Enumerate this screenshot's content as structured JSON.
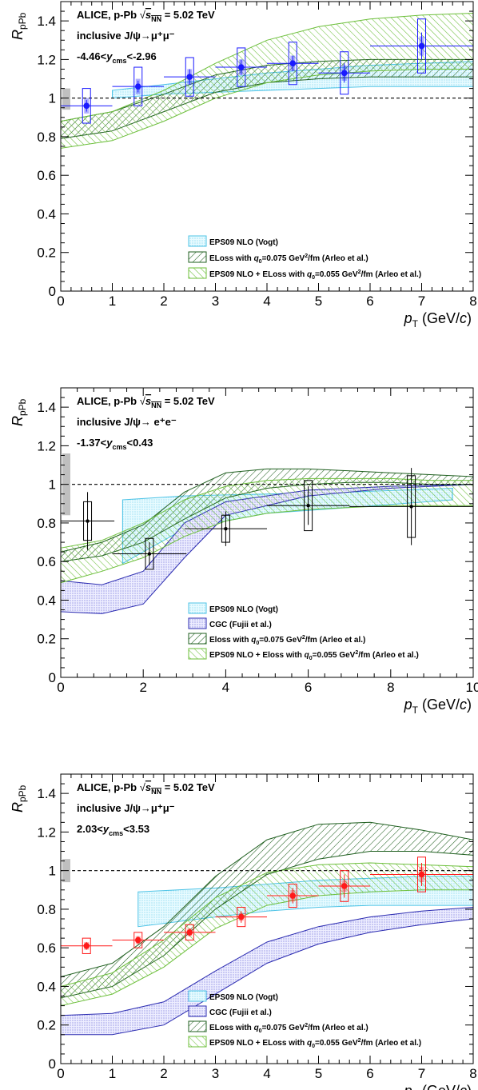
{
  "figure": {
    "common": {
      "ylabel_main": "R",
      "ylabel_sub": "pPb",
      "xlabel_main": "p",
      "xlabel_sub": "T",
      "xlabel_unit": "(GeV/",
      "xlabel_unit_italic": "c",
      "xlabel_unit_end": ")",
      "header": "ALICE, p-Pb",
      "sqrt_label": "s",
      "sqrt_sub": "NN",
      "energy": "= 5.02 TeV",
      "q_label": "q",
      "q_sub": "0"
    }
  },
  "chart_data": [
    {
      "type": "scatter",
      "header": "ALICE, p-Pb √sNN = 5.02 TeV",
      "process": "inclusive J/ψ→μ⁺μ⁻",
      "rapidity": "-4.46<ycms<-2.96",
      "rapidity_pre": "-4.46<",
      "rapidity_post": "<-2.96",
      "xlim": [
        0,
        8
      ],
      "ylim": [
        0,
        1.5
      ],
      "xticks": [
        0,
        1,
        2,
        3,
        4,
        5,
        6,
        7,
        8
      ],
      "yticks": [
        0,
        0.2,
        0.4,
        0.6,
        0.8,
        1,
        1.2,
        1.4
      ],
      "marker_color": "#1a1aff",
      "ref_line": 1.0,
      "global_unc": [
        0.94,
        1.05
      ],
      "points": [
        {
          "x": 0.5,
          "y": 0.96,
          "xerr": 0.5,
          "stat": 0.03,
          "sys": 0.09,
          "corr": 0.04
        },
        {
          "x": 1.5,
          "y": 1.06,
          "xerr": 0.5,
          "stat": 0.03,
          "sys": 0.1,
          "corr": 0.04
        },
        {
          "x": 2.5,
          "y": 1.11,
          "xerr": 0.5,
          "stat": 0.04,
          "sys": 0.1,
          "corr": 0.04
        },
        {
          "x": 3.5,
          "y": 1.16,
          "xerr": 0.5,
          "stat": 0.04,
          "sys": 0.1,
          "corr": 0.04
        },
        {
          "x": 4.5,
          "y": 1.18,
          "xerr": 0.5,
          "stat": 0.04,
          "sys": 0.11,
          "corr": 0.04
        },
        {
          "x": 5.5,
          "y": 1.13,
          "xerr": 0.5,
          "stat": 0.05,
          "sys": 0.11,
          "corr": 0.04
        },
        {
          "x": 7.0,
          "y": 1.27,
          "xerr": 1.0,
          "stat": 0.07,
          "sys": 0.14,
          "corr": 0.05
        }
      ],
      "models": [
        {
          "name": "EPS09 NLO (Vogt)",
          "style": "dots-cyan",
          "x": [
            1,
            2,
            3,
            4,
            5,
            6,
            7,
            8
          ],
          "low": [
            1.0,
            1.02,
            1.03,
            1.04,
            1.05,
            1.06,
            1.06,
            1.06
          ],
          "high": [
            1.04,
            1.07,
            1.1,
            1.13,
            1.15,
            1.17,
            1.18,
            1.19
          ]
        },
        {
          "name": "ELoss with q0=0.075 GeV²/fm (Arleo et al.)",
          "style": "hatch-dark",
          "x": [
            0,
            1,
            2,
            3,
            4,
            5,
            6,
            7,
            8
          ],
          "low": [
            0.79,
            0.83,
            0.93,
            1.03,
            1.08,
            1.1,
            1.11,
            1.11,
            1.11
          ],
          "high": [
            0.88,
            0.93,
            1.02,
            1.12,
            1.17,
            1.19,
            1.2,
            1.2,
            1.2
          ]
        },
        {
          "name": "EPS09 NLO + ELoss with q0=0.055 GeV²/fm (Arleo et al.)",
          "style": "hatch-light",
          "x": [
            0,
            1,
            2,
            3,
            4,
            5,
            6,
            7,
            8
          ],
          "low": [
            0.74,
            0.78,
            0.88,
            1.0,
            1.08,
            1.12,
            1.14,
            1.15,
            1.15
          ],
          "high": [
            0.88,
            0.93,
            1.04,
            1.18,
            1.3,
            1.37,
            1.41,
            1.43,
            1.44
          ]
        }
      ]
    },
    {
      "type": "scatter",
      "header": "ALICE, p-Pb √sNN = 5.02 TeV",
      "process": "inclusive J/ψ→ e⁺e⁻",
      "rapidity": "-1.37<ycms<0.43",
      "rapidity_pre": "-1.37<",
      "rapidity_post": "<0.43",
      "xlim": [
        0,
        10
      ],
      "ylim": [
        0,
        1.5
      ],
      "xticks": [
        0,
        2,
        4,
        6,
        8,
        10
      ],
      "yticks": [
        0,
        0.2,
        0.4,
        0.6,
        0.8,
        1,
        1.2,
        1.4
      ],
      "marker_color": "#000000",
      "ref_line": 1.0,
      "global_unc": [
        0.84,
        1.16
      ],
      "points": [
        {
          "x": 0.65,
          "y": 0.81,
          "xerr": 0.65,
          "stat": 0.15,
          "sys": 0.1,
          "corr": 0.0
        },
        {
          "x": 2.15,
          "y": 0.64,
          "xerr": 0.9,
          "stat": 0.06,
          "sys": 0.08,
          "corr": 0.0
        },
        {
          "x": 4.0,
          "y": 0.77,
          "xerr": 1.0,
          "stat": 0.09,
          "sys": 0.07,
          "corr": 0.0
        },
        {
          "x": 6.0,
          "y": 0.89,
          "xerr": 1.0,
          "stat": 0.1,
          "sys": 0.13,
          "corr": 0.0
        },
        {
          "x": 8.5,
          "y": 0.885,
          "xerr": 1.5,
          "stat": 0.2,
          "sys": 0.16,
          "corr": 0.0
        }
      ],
      "models": [
        {
          "name": "EPS09 NLO (Vogt)",
          "style": "dots-cyan",
          "x": [
            1.5,
            3,
            5,
            7,
            9.5
          ],
          "low": [
            0.59,
            0.77,
            0.85,
            0.88,
            0.92
          ],
          "high": [
            0.92,
            0.94,
            0.95,
            0.96,
            0.98
          ]
        },
        {
          "name": "CGC (Fujii et al.)",
          "style": "dots-blue",
          "x": [
            0,
            1,
            2,
            3,
            4,
            6,
            8,
            10
          ],
          "low": [
            0.34,
            0.33,
            0.38,
            0.62,
            0.84,
            0.94,
            0.98,
            1.0
          ],
          "high": [
            0.5,
            0.48,
            0.55,
            0.8,
            0.91,
            0.97,
            0.99,
            1.0
          ]
        },
        {
          "name": "Eloss with q0=0.075 GeV²/fm (Arleo et al.)",
          "style": "hatch-dark",
          "x": [
            0,
            1,
            2,
            3,
            4,
            5,
            6,
            7,
            8,
            9,
            10
          ],
          "low": [
            0.6,
            0.63,
            0.7,
            0.82,
            0.93,
            0.98,
            1.0,
            1.01,
            1.01,
            1.0,
            1.0
          ],
          "high": [
            0.65,
            0.7,
            0.79,
            0.96,
            1.06,
            1.08,
            1.08,
            1.07,
            1.06,
            1.05,
            1.04
          ]
        },
        {
          "name": "EPS09 NLO + Eloss with q0=0.055 GeV²/fm (Arleo et al.)",
          "style": "hatch-light",
          "x": [
            0,
            1,
            2,
            3,
            4,
            5,
            6,
            7,
            8,
            9,
            10
          ],
          "low": [
            0.49,
            0.55,
            0.62,
            0.73,
            0.81,
            0.85,
            0.87,
            0.88,
            0.89,
            0.89,
            0.89
          ],
          "high": [
            0.67,
            0.71,
            0.8,
            0.92,
            0.99,
            1.02,
            1.03,
            1.03,
            1.03,
            1.02,
            1.02
          ]
        }
      ]
    },
    {
      "type": "scatter",
      "header": "ALICE, p-Pb √sNN = 5.02 TeV",
      "process": "inclusive J/ψ→μ⁺μ⁻",
      "rapidity": "2.03<ycms<3.53",
      "rapidity_pre": "2.03<",
      "rapidity_post": "<3.53",
      "xlim": [
        0,
        8
      ],
      "ylim": [
        0,
        1.5
      ],
      "xticks": [
        0,
        1,
        2,
        3,
        4,
        5,
        6,
        7,
        8
      ],
      "yticks": [
        0,
        0.2,
        0.4,
        0.6,
        0.8,
        1,
        1.2,
        1.4
      ],
      "marker_color": "#ff1a1a",
      "ref_line": 1.0,
      "global_unc": [
        0.94,
        1.06
      ],
      "points": [
        {
          "x": 0.5,
          "y": 0.61,
          "xerr": 0.5,
          "stat": 0.02,
          "sys": 0.04,
          "corr": 0.02
        },
        {
          "x": 1.5,
          "y": 0.64,
          "xerr": 0.5,
          "stat": 0.02,
          "sys": 0.04,
          "corr": 0.02
        },
        {
          "x": 2.5,
          "y": 0.68,
          "xerr": 0.5,
          "stat": 0.02,
          "sys": 0.04,
          "corr": 0.02
        },
        {
          "x": 3.5,
          "y": 0.76,
          "xerr": 0.5,
          "stat": 0.03,
          "sys": 0.05,
          "corr": 0.02
        },
        {
          "x": 4.5,
          "y": 0.87,
          "xerr": 0.5,
          "stat": 0.04,
          "sys": 0.06,
          "corr": 0.03
        },
        {
          "x": 5.5,
          "y": 0.92,
          "xerr": 0.5,
          "stat": 0.06,
          "sys": 0.08,
          "corr": 0.03
        },
        {
          "x": 7.0,
          "y": 0.98,
          "xerr": 1.0,
          "stat": 0.06,
          "sys": 0.09,
          "corr": 0.04
        }
      ],
      "models": [
        {
          "name": "EPS09 NLO (Vogt)",
          "style": "dots-cyan",
          "x": [
            1.5,
            3,
            4,
            5,
            6,
            7,
            8
          ],
          "low": [
            0.71,
            0.76,
            0.79,
            0.81,
            0.82,
            0.82,
            0.82
          ],
          "high": [
            0.89,
            0.91,
            0.93,
            0.95,
            0.96,
            0.97,
            0.97
          ]
        },
        {
          "name": "CGC (Fujii et al.)",
          "style": "dots-blue",
          "x": [
            0,
            1,
            2,
            3,
            4,
            5,
            6,
            7,
            8
          ],
          "low": [
            0.15,
            0.15,
            0.2,
            0.36,
            0.52,
            0.62,
            0.68,
            0.72,
            0.75
          ],
          "high": [
            0.25,
            0.26,
            0.32,
            0.48,
            0.63,
            0.71,
            0.76,
            0.79,
            0.81
          ]
        },
        {
          "name": "ELoss with q0=0.075 GeV²/fm (Arleo et al.)",
          "style": "hatch-dark",
          "x": [
            0,
            1,
            2,
            3,
            4,
            5,
            6,
            7,
            8
          ],
          "low": [
            0.34,
            0.4,
            0.56,
            0.8,
            0.98,
            1.06,
            1.1,
            1.1,
            1.08
          ],
          "high": [
            0.45,
            0.52,
            0.71,
            0.97,
            1.16,
            1.24,
            1.25,
            1.21,
            1.16
          ]
        },
        {
          "name": "EPS09 NLO + ELoss with q0=0.055 GeV²/fm (Arleo et al.)",
          "style": "hatch-light",
          "x": [
            0,
            1,
            2,
            3,
            4,
            5,
            6,
            7,
            8
          ],
          "low": [
            0.3,
            0.36,
            0.5,
            0.7,
            0.82,
            0.87,
            0.89,
            0.9,
            0.9
          ],
          "high": [
            0.4,
            0.47,
            0.64,
            0.86,
            0.99,
            1.03,
            1.04,
            1.03,
            1.02
          ]
        }
      ]
    }
  ]
}
